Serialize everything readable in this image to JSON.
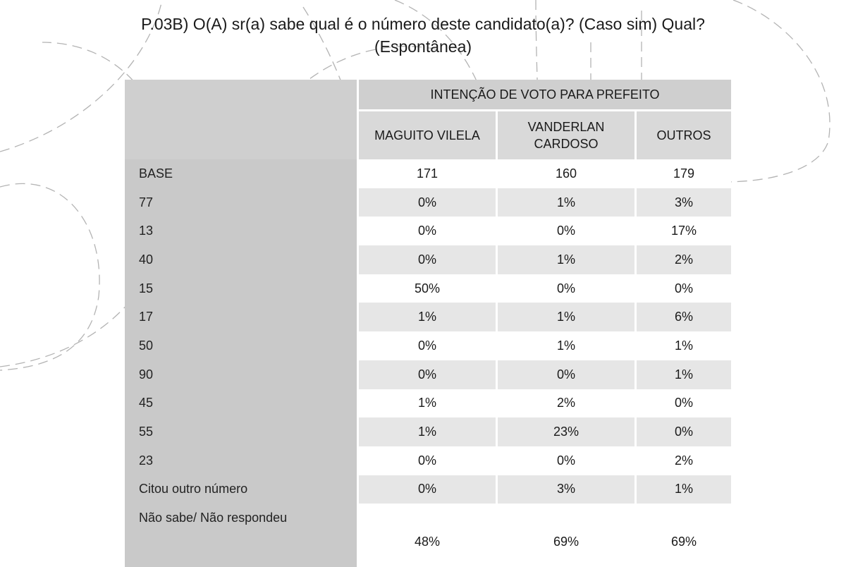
{
  "title": "P.03B) O(A) sr(a) sabe qual é o número deste candidato(a)? (Caso sim) Qual? (Espontânea)",
  "table": {
    "group_header": "INTENÇÃO DE VOTO PARA PREFEITO",
    "columns": [
      "MAGUITO VILELA",
      "VANDERLAN CARDOSO",
      "OUTROS"
    ],
    "rows": [
      {
        "label": "BASE",
        "values": [
          "171",
          "160",
          "179"
        ]
      },
      {
        "label": "77",
        "values": [
          "0%",
          "1%",
          "3%"
        ]
      },
      {
        "label": "13",
        "values": [
          "0%",
          "0%",
          "17%"
        ]
      },
      {
        "label": "40",
        "values": [
          "0%",
          "1%",
          "2%"
        ]
      },
      {
        "label": "15",
        "values": [
          "50%",
          "0%",
          "0%"
        ]
      },
      {
        "label": "17",
        "values": [
          "1%",
          "1%",
          "6%"
        ]
      },
      {
        "label": "50",
        "values": [
          "0%",
          "1%",
          "1%"
        ]
      },
      {
        "label": "90",
        "values": [
          "0%",
          "0%",
          "1%"
        ]
      },
      {
        "label": "45",
        "values": [
          "1%",
          "2%",
          "0%"
        ]
      },
      {
        "label": "55",
        "values": [
          "1%",
          "23%",
          "0%"
        ]
      },
      {
        "label": "23",
        "values": [
          "0%",
          "0%",
          "2%"
        ]
      },
      {
        "label": "Citou outro número",
        "values": [
          "0%",
          "3%",
          "1%"
        ]
      },
      {
        "label": "Não sabe/ Não respondeu",
        "values": [
          "48%",
          "69%",
          "69%"
        ]
      }
    ]
  },
  "colors": {
    "label_column": "#c9c9c9",
    "header": "#cfcfcf",
    "row_even": "#e6e6e6",
    "row_odd": "#ffffff"
  }
}
